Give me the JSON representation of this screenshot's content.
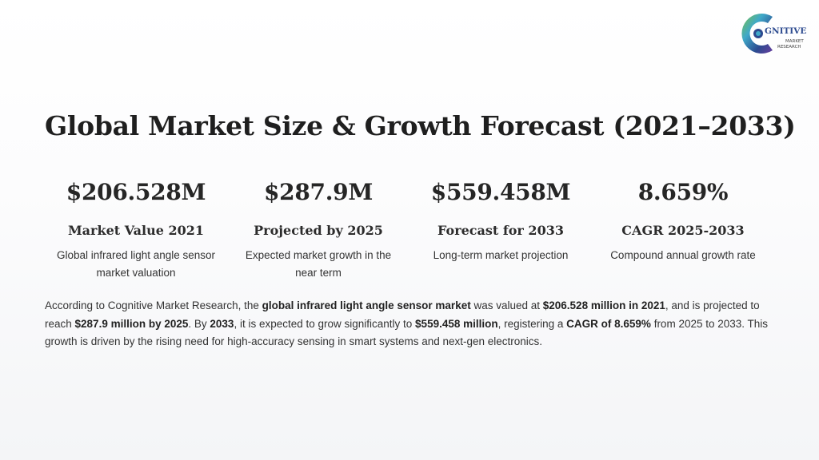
{
  "logo": {
    "word": "GNITIVE",
    "line2": "MARKET",
    "line3": "RESEARCH",
    "colors": [
      "#2c4a8f",
      "#3fa9c9",
      "#7ac143",
      "#6b3fa0"
    ]
  },
  "title": "Global Market Size & Growth Forecast (2021–2033)",
  "stats": [
    {
      "value": "$206.528M",
      "label": "Market Value 2021",
      "desc": "Global infrared light angle sensor market valuation"
    },
    {
      "value": "$287.9M",
      "label": "Projected by 2025",
      "desc": "Expected market growth in the near term"
    },
    {
      "value": "$559.458M",
      "label": "Forecast for 2033",
      "desc": "Long-term market projection"
    },
    {
      "value": "8.659%",
      "label": "CAGR 2025-2033",
      "desc": "Compound annual growth rate"
    }
  ],
  "summary": {
    "t1": "According to Cognitive Market Research, the ",
    "b1": "global infrared light angle sensor market",
    "t2": " was valued at ",
    "b2": "$206.528 million in 2021",
    "t3": ", and is projected to reach ",
    "b3": "$287.9 million by 2025",
    "t4": ". By ",
    "b4": "2033",
    "t5": ", it is expected to grow significantly to ",
    "b5": "$559.458 million",
    "t6": ", registering a ",
    "b6": "CAGR of 8.659%",
    "t7": " from 2025 to 2033. This growth is driven by the rising need for high-accuracy sensing in smart systems and next-gen electronics."
  }
}
